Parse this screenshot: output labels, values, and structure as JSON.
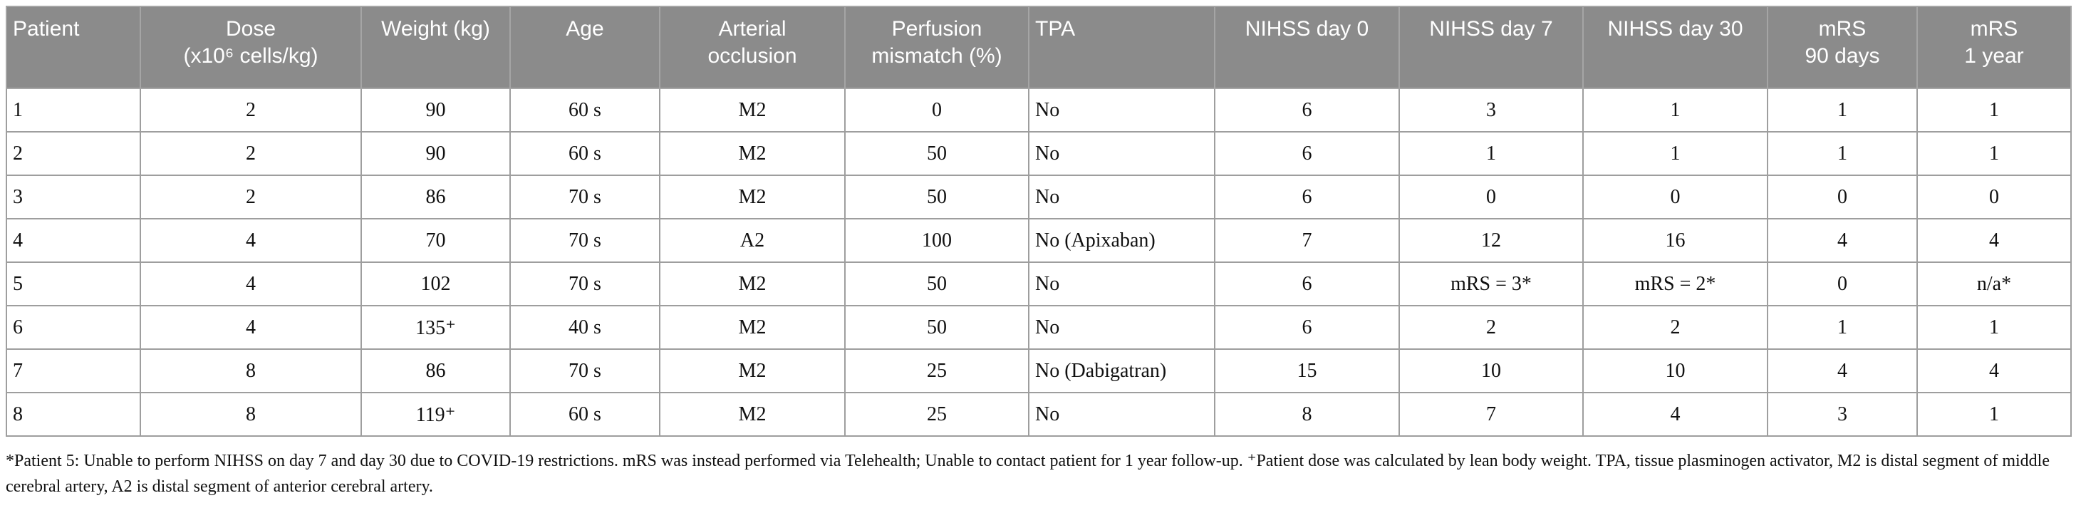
{
  "table": {
    "headers": [
      "Patient",
      "Dose\n(x10⁶ cells/kg)",
      "Weight (kg)",
      "Age",
      "Arterial\nocclusion",
      "Perfusion\nmismatch (%)",
      "TPA",
      "NIHSS day 0",
      "NIHSS day 7",
      "NIHSS day 30",
      "mRS\n90 days",
      "mRS\n1 year"
    ],
    "rows": [
      {
        "cells": [
          "1",
          "2",
          "90",
          "60 s",
          "M2",
          "0",
          "No",
          "6",
          "3",
          "1",
          "1",
          "1"
        ]
      },
      {
        "cells": [
          "2",
          "2",
          "90",
          "60 s",
          "M2",
          "50",
          "No",
          "6",
          "1",
          "1",
          "1",
          "1"
        ]
      },
      {
        "cells": [
          "3",
          "2",
          "86",
          "70 s",
          "M2",
          "50",
          "No",
          "6",
          "0",
          "0",
          "0",
          "0"
        ]
      },
      {
        "cells": [
          "4",
          "4",
          "70",
          "70 s",
          "A2",
          "100",
          "No (Apixaban)",
          "7",
          "12",
          "16",
          "4",
          "4"
        ]
      },
      {
        "cells": [
          "5",
          "4",
          "102",
          "70 s",
          "M2",
          "50",
          "No",
          "6",
          "mRS = 3*",
          "mRS = 2*",
          "0",
          "n/a*"
        ]
      },
      {
        "cells": [
          "6",
          "4",
          "135⁺",
          "40 s",
          "M2",
          "50",
          "No",
          "6",
          "2",
          "2",
          "1",
          "1"
        ]
      },
      {
        "cells": [
          "7",
          "8",
          "86",
          "70 s",
          "M2",
          "25",
          "No (Dabigatran)",
          "15",
          "10",
          "10",
          "4",
          "4"
        ]
      },
      {
        "cells": [
          "8",
          "8",
          "119⁺",
          "60 s",
          "M2",
          "25",
          "No",
          "8",
          "7",
          "4",
          "3",
          "1"
        ]
      }
    ]
  },
  "footnote": {
    "text": "*Patient 5: Unable to perform NIHSS on day 7 and day 30 due to COVID-19 restrictions. mRS was instead performed via Telehealth; Unable to contact patient for 1 year follow-up. ⁺Patient dose was calculated by lean body weight. TPA, tissue plasminogen activator, M2 is distal segment of middle cerebral artery, A2 is distal segment of anterior cerebral artery.",
    "colors": {
      "header_background": "#8b8b8b",
      "header_text": "#ffffff",
      "grid_line": "#9e9e9e",
      "body_text": "#111111"
    }
  }
}
